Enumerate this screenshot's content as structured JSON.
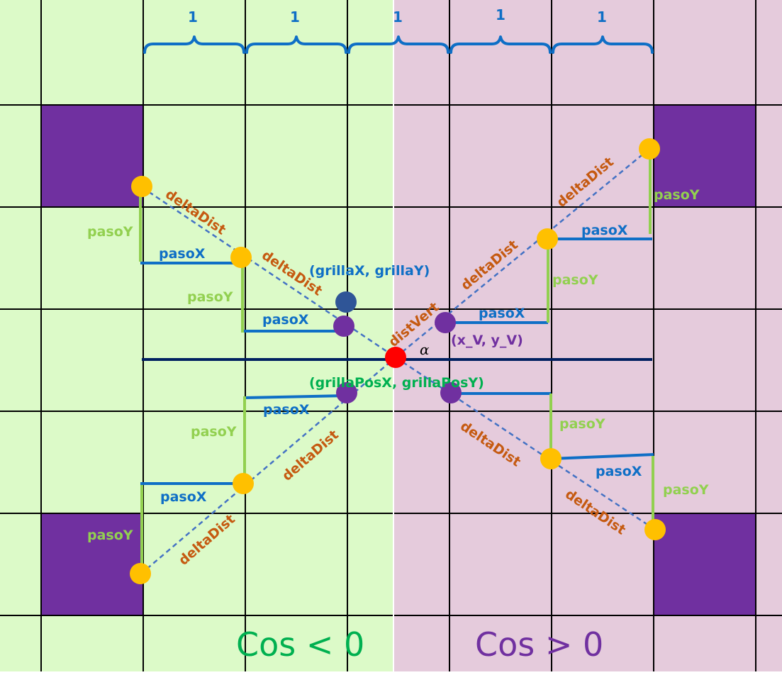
{
  "colors": {
    "left_bg": "#dcfac8",
    "right_bg": "#e5cbdc",
    "wall": "#7030a0",
    "grid": "#000000",
    "brace": "#0f6fc6",
    "pasoX": "#0f6fc6",
    "pasoY": "#92d050",
    "deltaDist": "#c55a11",
    "dashed": "#4472c4",
    "yellow_dot": "#ffc000",
    "purple_dot": "#7030a0",
    "blue_dot": "#2f5597",
    "red_dot": "#ff0000",
    "axis_line": "#002060",
    "cos_left": "#00b050",
    "cos_right": "#7030a0"
  },
  "scale_labels": [
    "1",
    "1",
    "1",
    "1",
    "1"
  ],
  "regions": {
    "left_label": "Cos < 0",
    "right_label": "Cos > 0"
  },
  "labels": {
    "deltaDist": "deltaDist",
    "pasoX": "pasoX",
    "pasoY": "pasoY",
    "distVert": "distVert",
    "alpha": "α",
    "grilla": "(grillaX, grillaY)",
    "grillaPos": "(grillaPosX, grillaPosY)",
    "xv_yv": "(x_V, y_V)"
  }
}
